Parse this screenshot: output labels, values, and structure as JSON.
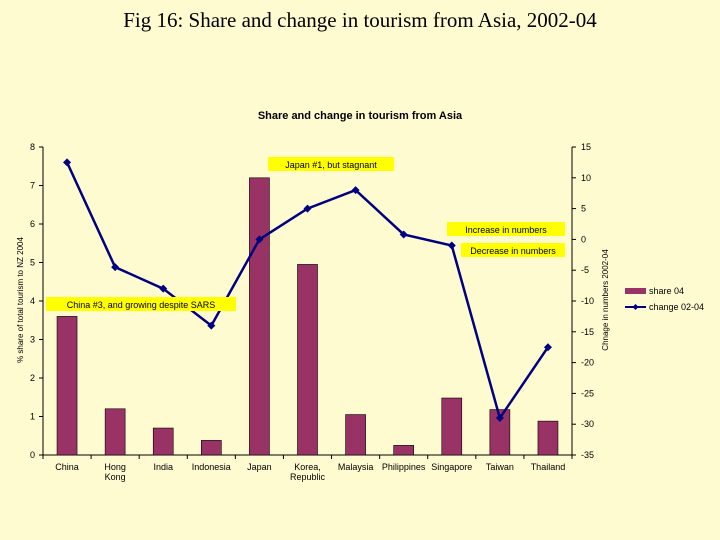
{
  "page": {
    "title": "Fig 16: Share and change in tourism from Asia, 2002-04"
  },
  "chart_data": {
    "type": "bar",
    "title": "Share and change in tourism from Asia",
    "ylabel": "% share of total tourism to NZ 2004",
    "y2label": "Chnage in numbers 2002-04",
    "ylim": [
      0,
      8
    ],
    "y2lim": [
      -35,
      15
    ],
    "yticks": [
      "0",
      "1",
      "2",
      "3",
      "4",
      "5",
      "6",
      "7",
      "8"
    ],
    "y2ticks": [
      "-35",
      "-30",
      "-25",
      "-20",
      "-15",
      "-10",
      "-5",
      "0",
      "5",
      "10",
      "15"
    ],
    "categories": [
      "China",
      "Hong Kong",
      "India",
      "Indonesia",
      "Japan",
      "Korea, Republic",
      "Malaysia",
      "Philippines",
      "Singapore",
      "Taiwan",
      "Thailand"
    ],
    "category_labels": [
      [
        "China"
      ],
      [
        "Hong",
        "Kong"
      ],
      [
        "India"
      ],
      [
        "Indonesia"
      ],
      [
        "Japan"
      ],
      [
        "Korea,",
        "Republic"
      ],
      [
        "Malaysia"
      ],
      [
        "Philippines"
      ],
      [
        "Singapore"
      ],
      [
        "Taiwan"
      ],
      [
        "Thailand"
      ]
    ],
    "series": [
      {
        "name": "share 04",
        "type": "bar",
        "axis": "left",
        "color": "#993366",
        "values": [
          3.6,
          1.2,
          0.7,
          0.38,
          7.2,
          4.95,
          1.05,
          0.25,
          1.48,
          1.18,
          0.88
        ]
      },
      {
        "name": "change 02-04",
        "type": "line",
        "axis": "right",
        "color": "#000080",
        "values": [
          12.5,
          -4.5,
          -8,
          -14,
          0,
          5,
          8,
          0.8,
          -1,
          -29,
          -17.5
        ]
      }
    ],
    "annotations": [
      {
        "text": "Japan #1, but stagnant"
      },
      {
        "text": "Increase  in numbers"
      },
      {
        "text": "Decrease in numbers"
      },
      {
        "text": "China #3, and growing despite SARS"
      }
    ],
    "legend_position": "right"
  }
}
